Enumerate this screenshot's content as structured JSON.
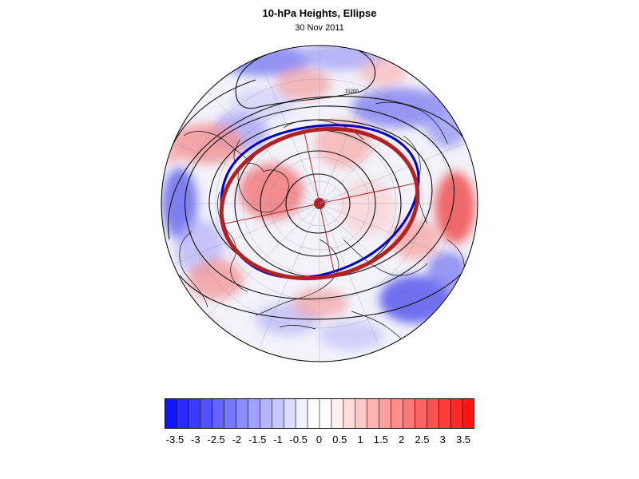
{
  "title": "10-hPa Heights, Ellipse",
  "subtitle": "30 Nov 2011",
  "contour_label": "31200",
  "colorbar": {
    "labels": [
      "-3.5",
      "-3",
      "-2.5",
      "-2",
      "-1.5",
      "-1",
      "-0.5",
      "0",
      "0.5",
      "1",
      "1.5",
      "2",
      "2.5",
      "3",
      "3.5"
    ],
    "colors": [
      "#1414ff",
      "#2828ff",
      "#3c3cff",
      "#5050ff",
      "#6464ff",
      "#7878ff",
      "#8c8cff",
      "#a0a0ff",
      "#b4b4ff",
      "#c8c8ff",
      "#dcdcff",
      "#f0f0ff",
      "#ffffff",
      "#ffffff",
      "#fff0f0",
      "#ffdcdc",
      "#ffc8c8",
      "#ffb4b4",
      "#ffa0a0",
      "#ff8c8c",
      "#ff7878",
      "#ff6464",
      "#ff5050",
      "#ff3c3c",
      "#ff2828",
      "#ff1414"
    ]
  },
  "colors": {
    "ellipse_fit": "#b22222",
    "ellipse_contour": "#0000c0",
    "warm_anomaly": "#ff6060",
    "cold_anomaly": "#6060ff"
  }
}
